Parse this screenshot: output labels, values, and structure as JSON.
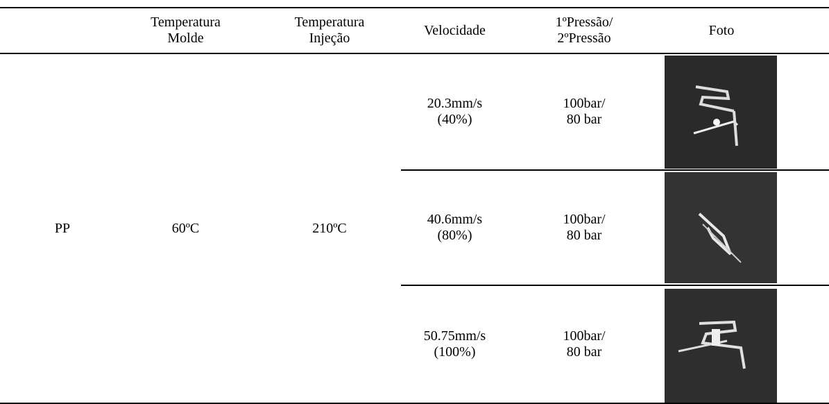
{
  "table": {
    "header": [
      [
        "Temperatura",
        "Molde"
      ],
      [
        "Temperatura",
        "Injeção"
      ],
      [
        "Velocidade"
      ],
      [
        "1ºPressão/",
        "2ºPressão"
      ],
      [
        "Foto"
      ]
    ],
    "material": "PP",
    "mold_temp": "60ºC",
    "injection_temp": "210ºC",
    "runs": [
      {
        "speed": [
          "20.3mm/s",
          "(40%)"
        ],
        "pressure": [
          "100bar/",
          "80 bar"
        ]
      },
      {
        "speed": [
          "40.6mm/s",
          "(80%)"
        ],
        "pressure": [
          "100bar/",
          "80 bar"
        ]
      },
      {
        "speed": [
          "50.75mm/s",
          "(100%)"
        ],
        "pressure": [
          "100bar/",
          "80 bar"
        ]
      }
    ]
  }
}
